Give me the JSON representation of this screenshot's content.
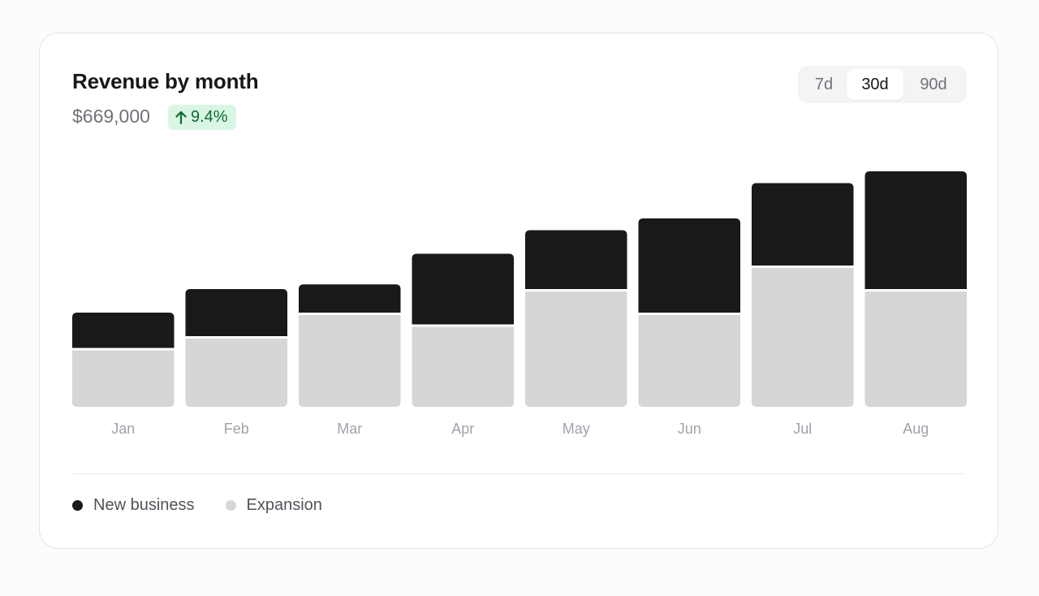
{
  "card": {
    "title": "Revenue by month",
    "total": "$669,000",
    "change": "9.4%",
    "change_icon": "arrow-up-icon"
  },
  "range_selector": {
    "options": [
      "7d",
      "30d",
      "90d"
    ],
    "selected": "30d"
  },
  "colors": {
    "new_business": "#19181b",
    "expansion": "#d6d5d8",
    "badge_bg": "#d9f5e3",
    "badge_text": "#116a35"
  },
  "chart_data": {
    "type": "bar",
    "stacked": true,
    "categories": [
      "Jan",
      "Feb",
      "Mar",
      "Apr",
      "May",
      "Jun",
      "Jul",
      "Aug"
    ],
    "series": [
      {
        "name": "Expansion",
        "values": [
          25,
          30,
          40,
          35,
          50,
          40,
          60,
          50
        ]
      },
      {
        "name": "New business",
        "values": [
          15,
          20,
          12,
          30,
          25,
          40,
          35,
          50
        ]
      }
    ],
    "ylim": [
      0,
      100
    ],
    "grid": false,
    "legend": "bottom-left"
  },
  "legend": {
    "items": [
      {
        "label": "New business",
        "color": "#19181b"
      },
      {
        "label": "Expansion",
        "color": "#d6d5d8"
      }
    ]
  }
}
